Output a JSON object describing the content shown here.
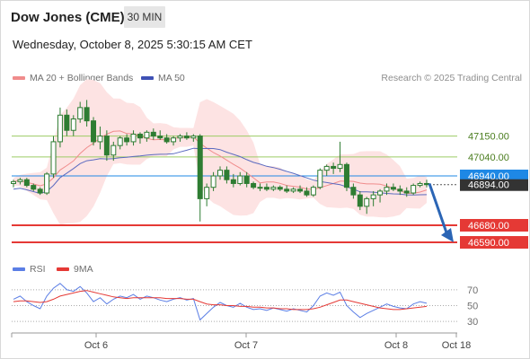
{
  "header": {
    "title": "Dow Jones (CME)",
    "timeframe": "30 MIN",
    "datetime": "Wednesday, October 8, 2025 5:30:15 AM CET"
  },
  "legend": {
    "ma20_label": "MA 20 + Bollinger Bands",
    "ma50_label": "MA 50",
    "credit": "Research © 2025 Trading Central"
  },
  "rsi_legend": {
    "rsi_label": "RSI",
    "ma_label": "9MA"
  },
  "colors": {
    "candle": "#2e7d32",
    "bollinger_fill": "#fde3e3",
    "ma20": "#f08c8c",
    "ma50": "#5c6bc0",
    "resistance": "#9ccc65",
    "support": "#e53935",
    "pivot": "#1e88e5",
    "current_label": "#333333",
    "rsi_line": "#5b7ee5",
    "rsi_ma": "#e53935"
  },
  "chart_data": {
    "type": "candlestick",
    "price_axis": {
      "min": 46500,
      "max": 47400
    },
    "x_axis": {
      "ticks": [
        "Oct 6",
        "Oct 7",
        "Oct 8",
        "Oct 18"
      ]
    },
    "levels": [
      {
        "id": "r2",
        "value": 47150,
        "label": "47150.00",
        "kind": "resistance"
      },
      {
        "id": "r1",
        "value": 47040,
        "label": "47040.00",
        "kind": "resistance"
      },
      {
        "id": "pivot",
        "value": 46940,
        "label": "46940.00",
        "kind": "pivot"
      },
      {
        "id": "s1",
        "value": 46680,
        "label": "46680.00",
        "kind": "support"
      },
      {
        "id": "s2",
        "value": 46590,
        "label": "46590.00",
        "kind": "support"
      }
    ],
    "last_price": {
      "value": 46894,
      "label": "46894.00"
    },
    "projection": {
      "from": 46900,
      "to": 46590
    },
    "candles": [
      [
        46900,
        46920,
        46880,
        46910
      ],
      [
        46910,
        46930,
        46895,
        46920
      ],
      [
        46920,
        46930,
        46880,
        46890
      ],
      [
        46890,
        46900,
        46860,
        46870
      ],
      [
        46870,
        46880,
        46840,
        46850
      ],
      [
        46850,
        46960,
        46840,
        46950
      ],
      [
        46950,
        47150,
        46930,
        47120
      ],
      [
        47120,
        47300,
        47090,
        47260
      ],
      [
        47260,
        47290,
        47150,
        47180
      ],
      [
        47180,
        47260,
        47150,
        47240
      ],
      [
        47240,
        47330,
        47220,
        47300
      ],
      [
        47300,
        47340,
        47200,
        47230
      ],
      [
        47230,
        47250,
        47100,
        47120
      ],
      [
        47120,
        47200,
        47080,
        47150
      ],
      [
        47150,
        47180,
        47020,
        47050
      ],
      [
        47050,
        47120,
        47020,
        47100
      ],
      [
        47100,
        47150,
        47080,
        47140
      ],
      [
        47140,
        47160,
        47100,
        47120
      ],
      [
        47120,
        47180,
        47100,
        47160
      ],
      [
        47160,
        47170,
        47110,
        47140
      ],
      [
        47140,
        47180,
        47120,
        47170
      ],
      [
        47170,
        47190,
        47130,
        47150
      ],
      [
        47150,
        47180,
        47130,
        47140
      ],
      [
        47140,
        47160,
        47110,
        47120
      ],
      [
        47120,
        47150,
        47100,
        47140
      ],
      [
        47140,
        47160,
        47120,
        47150
      ],
      [
        47150,
        47170,
        47130,
        47140
      ],
      [
        47140,
        47160,
        47120,
        47150
      ],
      [
        47150,
        47160,
        46700,
        46820
      ],
      [
        46820,
        46900,
        46780,
        46880
      ],
      [
        46880,
        46960,
        46860,
        46940
      ],
      [
        46940,
        46990,
        46920,
        46970
      ],
      [
        46970,
        46990,
        46900,
        46920
      ],
      [
        46920,
        46950,
        46880,
        46900
      ],
      [
        46900,
        46960,
        46890,
        46940
      ],
      [
        46940,
        46960,
        46880,
        46900
      ],
      [
        46900,
        46910,
        46870,
        46880
      ],
      [
        46880,
        46900,
        46860,
        46880
      ],
      [
        46880,
        46900,
        46860,
        46870
      ],
      [
        46870,
        46890,
        46860,
        46880
      ],
      [
        46880,
        46890,
        46860,
        46870
      ],
      [
        46870,
        46890,
        46850,
        46860
      ],
      [
        46860,
        46880,
        46850,
        46870
      ],
      [
        46870,
        46890,
        46850,
        46860
      ],
      [
        46860,
        46880,
        46830,
        46840
      ],
      [
        46840,
        46890,
        46830,
        46880
      ],
      [
        46880,
        46980,
        46870,
        46970
      ],
      [
        46970,
        47000,
        46940,
        46990
      ],
      [
        46990,
        47010,
        46950,
        46980
      ],
      [
        46980,
        47120,
        46960,
        47000
      ],
      [
        47000,
        47010,
        46860,
        46880
      ],
      [
        46880,
        46900,
        46820,
        46840
      ],
      [
        46840,
        46860,
        46760,
        46780
      ],
      [
        46780,
        46830,
        46740,
        46820
      ],
      [
        46820,
        46860,
        46780,
        46840
      ],
      [
        46840,
        46870,
        46800,
        46860
      ],
      [
        46860,
        46900,
        46840,
        46880
      ],
      [
        46880,
        46900,
        46860,
        46870
      ],
      [
        46870,
        46890,
        46840,
        46860
      ],
      [
        46860,
        46880,
        46830,
        46850
      ],
      [
        46850,
        46900,
        46840,
        46890
      ],
      [
        46890,
        46910,
        46880,
        46900
      ],
      [
        46900,
        46920,
        46880,
        46894
      ]
    ]
  },
  "rsi": {
    "axis": {
      "min": 20,
      "max": 80,
      "ticks": [
        "70",
        "50",
        "30"
      ]
    },
    "levels": [
      70,
      50,
      30
    ],
    "rsi_values": [
      58,
      62,
      55,
      50,
      46,
      62,
      72,
      78,
      70,
      68,
      74,
      66,
      55,
      60,
      52,
      58,
      62,
      60,
      64,
      58,
      62,
      60,
      57,
      55,
      58,
      60,
      57,
      59,
      32,
      40,
      48,
      54,
      50,
      48,
      53,
      48,
      45,
      46,
      44,
      47,
      45,
      43,
      46,
      44,
      42,
      50,
      62,
      66,
      63,
      67,
      50,
      42,
      35,
      40,
      44,
      48,
      52,
      49,
      47,
      46,
      52,
      55,
      53
    ],
    "ma_values": [
      55,
      56,
      56,
      55,
      54,
      55,
      58,
      62,
      64,
      66,
      68,
      69,
      67,
      65,
      63,
      61,
      60,
      59,
      60,
      60,
      60,
      60,
      60,
      59,
      59,
      59,
      58,
      58,
      55,
      52,
      51,
      51,
      50,
      50,
      49,
      49,
      48,
      48,
      47,
      47,
      46,
      46,
      45,
      45,
      45,
      46,
      48,
      51,
      54,
      57,
      57,
      55,
      53,
      51,
      49,
      47,
      46,
      45,
      45,
      46,
      47,
      48,
      49
    ]
  }
}
